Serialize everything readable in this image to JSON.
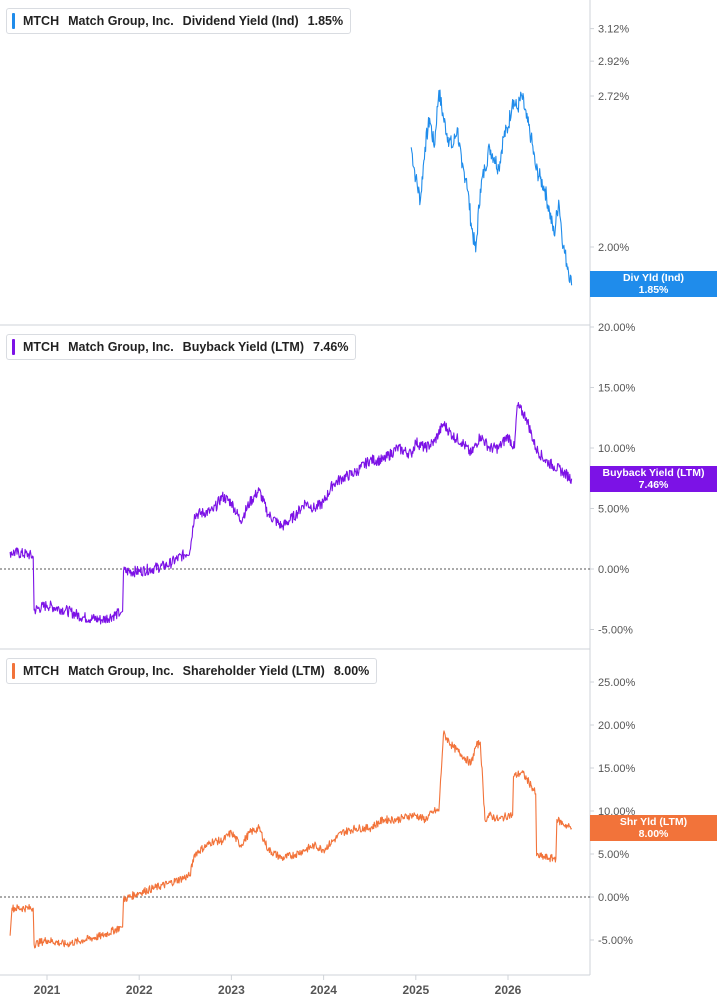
{
  "x_axis": {
    "ticks": [
      "2021",
      "2022",
      "2023",
      "2024",
      "2025",
      "2026"
    ]
  },
  "colors": {
    "dividend": "#1f8ceb",
    "buyback": "#7c12e6",
    "shareholder": "#f2733a",
    "axis_text": "#555555",
    "grid": "#cfd3d8"
  },
  "panels": [
    {
      "ticker": "MTCH",
      "company": "Match Group, Inc.",
      "metric": "Dividend Yield (Ind)",
      "value": "1.85%",
      "tag_label": "Div Yld (Ind)",
      "tag_value": "1.85%",
      "y_ticks": [
        "3.12%",
        "2.92%",
        "2.72%",
        "2.00%"
      ]
    },
    {
      "ticker": "MTCH",
      "company": "Match Group, Inc.",
      "metric": "Buyback Yield (LTM)",
      "value": "7.46%",
      "tag_label": "Buyback Yield (LTM)",
      "tag_value": "7.46%",
      "y_ticks": [
        "20.00%",
        "15.00%",
        "10.00%",
        "5.00%",
        "0.00%",
        "-5.00%"
      ]
    },
    {
      "ticker": "MTCH",
      "company": "Match Group, Inc.",
      "metric": "Shareholder Yield (LTM)",
      "value": "8.00%",
      "tag_label": "Shr Yld (LTM)",
      "tag_value": "8.00%",
      "y_ticks": [
        "25.00%",
        "20.00%",
        "15.00%",
        "10.00%",
        "5.00%",
        "0.00%",
        "-5.00%"
      ]
    }
  ],
  "chart_data": [
    {
      "type": "line",
      "series": [
        {
          "name": "Div Yld (Ind)",
          "x": [
            2024.95,
            2025.0,
            2025.05,
            2025.1,
            2025.15,
            2025.2,
            2025.25,
            2025.3,
            2025.35,
            2025.4,
            2025.45,
            2025.5,
            2025.55,
            2025.6,
            2025.65,
            2025.7,
            2025.75,
            2025.8,
            2025.85,
            2025.9,
            2025.95,
            2026.0,
            2026.05,
            2026.1,
            2026.15,
            2026.2,
            2026.25,
            2026.3,
            2026.35,
            2026.4,
            2026.45,
            2026.5,
            2026.55,
            2026.6,
            2026.65,
            2026.69
          ],
          "y": [
            2.45,
            2.3,
            2.2,
            2.45,
            2.6,
            2.45,
            2.75,
            2.6,
            2.5,
            2.45,
            2.55,
            2.35,
            2.3,
            2.1,
            1.98,
            2.25,
            2.35,
            2.45,
            2.4,
            2.35,
            2.5,
            2.55,
            2.7,
            2.65,
            2.72,
            2.6,
            2.5,
            2.35,
            2.3,
            2.25,
            2.15,
            2.05,
            2.2,
            2.0,
            1.92,
            1.85
          ]
        }
      ],
      "y_scale": "log",
      "y_ticks": [
        2.0,
        2.72,
        2.92,
        3.12
      ]
    },
    {
      "type": "line",
      "series": [
        {
          "name": "Buyback Yield (LTM)",
          "x": [
            2020.6,
            2020.8,
            2020.85,
            2020.86,
            2021.0,
            2021.2,
            2021.4,
            2021.6,
            2021.8,
            2021.82,
            2021.83,
            2022.0,
            2022.3,
            2022.55,
            2022.6,
            2022.8,
            2022.9,
            2023.0,
            2023.1,
            2023.2,
            2023.3,
            2023.4,
            2023.55,
            2023.7,
            2023.8,
            2023.9,
            2024.0,
            2024.1,
            2024.2,
            2024.35,
            2024.5,
            2024.65,
            2024.8,
            2024.95,
            2025.0,
            2025.1,
            2025.2,
            2025.3,
            2025.4,
            2025.5,
            2025.6,
            2025.7,
            2025.8,
            2025.9,
            2026.0,
            2026.07,
            2026.1,
            2026.2,
            2026.3,
            2026.4,
            2026.5,
            2026.6,
            2026.69
          ],
          "y": [
            1.4,
            1.2,
            1.0,
            -3.4,
            -3.0,
            -3.4,
            -4.0,
            -4.2,
            -3.6,
            -3.5,
            -0.2,
            -0.2,
            0.3,
            1.5,
            4.5,
            4.8,
            6.0,
            5.5,
            4.0,
            5.5,
            6.5,
            4.5,
            3.5,
            4.5,
            5.5,
            5.0,
            5.5,
            7.0,
            7.5,
            8.0,
            9.0,
            9.0,
            10.0,
            9.5,
            10.5,
            10.0,
            10.5,
            12.0,
            11.0,
            10.5,
            9.5,
            11.0,
            10.0,
            10.0,
            11.0,
            10.0,
            13.5,
            12.5,
            10.0,
            9.0,
            8.5,
            8.0,
            7.46
          ]
        }
      ],
      "y_ticks": [
        -5,
        0,
        5,
        10,
        15,
        20
      ],
      "reference_line": 0
    },
    {
      "type": "line",
      "series": [
        {
          "name": "Shr Yld (LTM)",
          "x": [
            2020.6,
            2020.62,
            2020.8,
            2020.85,
            2020.86,
            2021.0,
            2021.2,
            2021.4,
            2021.6,
            2021.8,
            2021.82,
            2021.83,
            2022.0,
            2022.3,
            2022.55,
            2022.6,
            2022.8,
            2022.9,
            2023.0,
            2023.1,
            2023.2,
            2023.3,
            2023.4,
            2023.55,
            2023.7,
            2023.8,
            2023.9,
            2024.0,
            2024.1,
            2024.2,
            2024.35,
            2024.5,
            2024.65,
            2024.8,
            2024.95,
            2025.0,
            2025.1,
            2025.2,
            2025.25,
            2025.3,
            2025.4,
            2025.5,
            2025.6,
            2025.65,
            2025.7,
            2025.75,
            2025.8,
            2025.9,
            2026.0,
            2026.05,
            2026.06,
            2026.15,
            2026.25,
            2026.3,
            2026.31,
            2026.45,
            2026.52,
            2026.53,
            2026.6,
            2026.69
          ],
          "y": [
            -4.5,
            -1.3,
            -1.3,
            -1.3,
            -5.5,
            -5.0,
            -5.5,
            -5.0,
            -4.5,
            -3.5,
            -3.5,
            -0.3,
            0.5,
            1.5,
            2.5,
            5.0,
            6.5,
            6.5,
            7.5,
            6.0,
            7.5,
            8.0,
            5.5,
            4.5,
            5.0,
            5.5,
            6.0,
            5.5,
            6.5,
            7.5,
            8.0,
            8.0,
            9.0,
            9.0,
            9.5,
            9.5,
            9.0,
            10.0,
            10.0,
            19.0,
            17.5,
            16.5,
            15.5,
            17.5,
            18.0,
            9.0,
            9.5,
            9.0,
            9.5,
            9.5,
            14.0,
            14.5,
            13.0,
            12.0,
            4.8,
            4.5,
            4.5,
            9.0,
            8.5,
            8.0
          ]
        }
      ],
      "y_ticks": [
        -5,
        0,
        5,
        10,
        15,
        20,
        25
      ],
      "reference_line": 0
    }
  ]
}
